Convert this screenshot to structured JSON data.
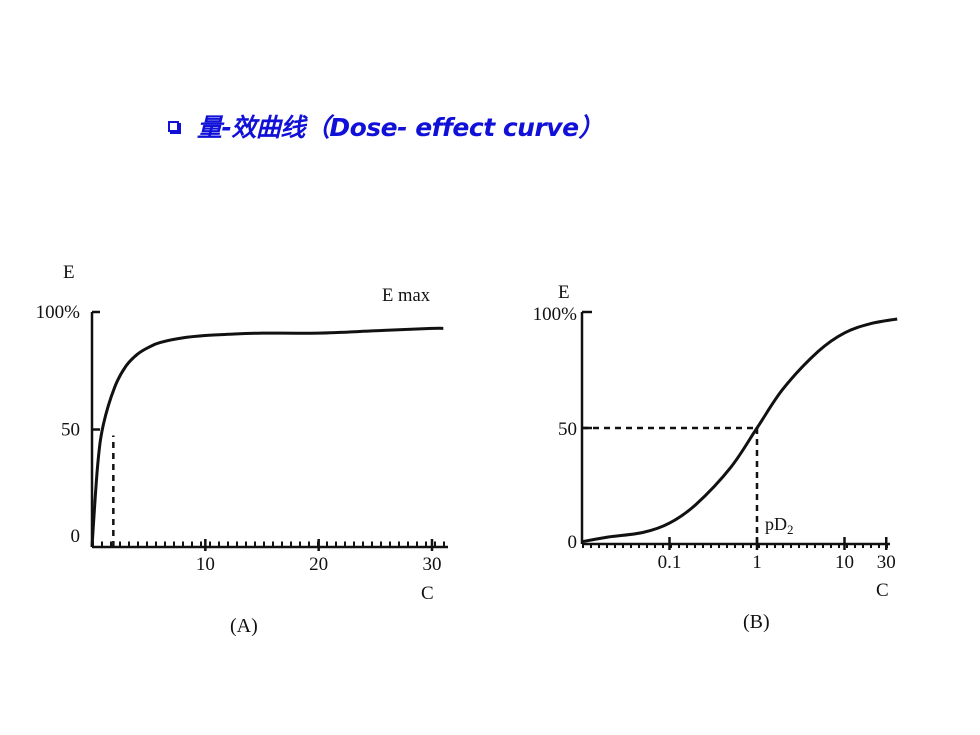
{
  "title": "量-效曲线（Dose- effect curve）",
  "colors": {
    "title": "#1010d8",
    "ink": "#111111",
    "background": "#ffffff"
  },
  "chart_data": [
    {
      "type": "line",
      "panel_label": "(A)",
      "ylabel": "E",
      "xlabel": "C",
      "x_ticks": [
        "10",
        "20",
        "30"
      ],
      "y_ticks": [
        "0",
        "50",
        "100%"
      ],
      "xlim": [
        0,
        31
      ],
      "ylim": [
        0,
        100
      ],
      "annotation": "E max",
      "series": [
        {
          "x": [
            0,
            0.5,
            1,
            2,
            3,
            4,
            5,
            6,
            8,
            10,
            12,
            15,
            20,
            25,
            30,
            31
          ],
          "y": [
            0,
            35,
            52,
            68,
            77,
            82,
            85,
            87,
            89,
            90,
            90.5,
            91,
            91,
            92,
            93,
            93
          ]
        }
      ],
      "reference_line": {
        "x": 1,
        "y": 50
      }
    },
    {
      "type": "line",
      "panel_label": "(B)",
      "ylabel": "E",
      "xlabel": "C",
      "x_scale": "log",
      "x_ticks": [
        "0.1",
        "1",
        "10",
        "30"
      ],
      "y_ticks": [
        "0",
        "50",
        "100%"
      ],
      "xlim": [
        0.01,
        40
      ],
      "ylim": [
        0,
        100
      ],
      "annotation": "pD",
      "annotation_sub": "2",
      "series": [
        {
          "x": [
            0.01,
            0.02,
            0.05,
            0.1,
            0.2,
            0.5,
            1,
            2,
            5,
            10,
            20,
            40
          ],
          "y": [
            1,
            3,
            5,
            9,
            17,
            33,
            50,
            67,
            83,
            91,
            95,
            97
          ]
        }
      ],
      "reference_line": {
        "x": 1,
        "y": 50
      }
    }
  ]
}
